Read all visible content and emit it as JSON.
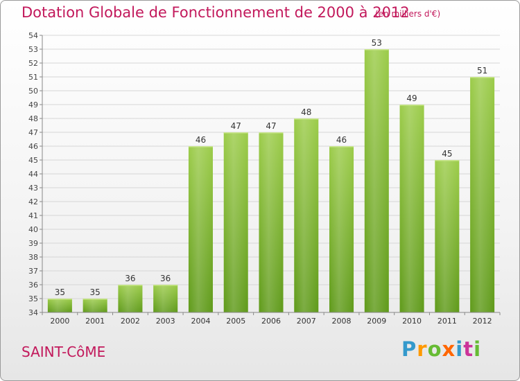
{
  "header": {
    "title": "Dotation Globale de Fonctionnement de 2000 à 2012",
    "subtitle": "(en milliers d'€)"
  },
  "footer": {
    "town": "SAINT-CôME",
    "brand": "Proxiti",
    "brand_colors": [
      "#3399cc",
      "#ff9900",
      "#66bb33",
      "#ff6600",
      "#3399cc",
      "#cc3399",
      "#66bb33"
    ]
  },
  "chart_data": {
    "type": "bar",
    "title": "Dotation Globale de Fonctionnement de 2000 à 2012",
    "subtitle": "(en milliers d'€)",
    "xlabel": "",
    "ylabel": "",
    "categories": [
      "2000",
      "2001",
      "2002",
      "2003",
      "2004",
      "2005",
      "2006",
      "2007",
      "2008",
      "2009",
      "2010",
      "2011",
      "2012"
    ],
    "values": [
      35,
      35,
      36,
      36,
      46,
      47,
      47,
      48,
      46,
      53,
      49,
      45,
      51
    ],
    "ylim": [
      34,
      54
    ],
    "yticks": [
      34,
      35,
      36,
      37,
      38,
      39,
      40,
      41,
      42,
      43,
      44,
      45,
      46,
      47,
      48,
      49,
      50,
      51,
      52,
      53,
      54
    ],
    "grid": true,
    "bar_color_top": "#9ccc4a",
    "bar_color_bottom": "#5f9a1a"
  }
}
